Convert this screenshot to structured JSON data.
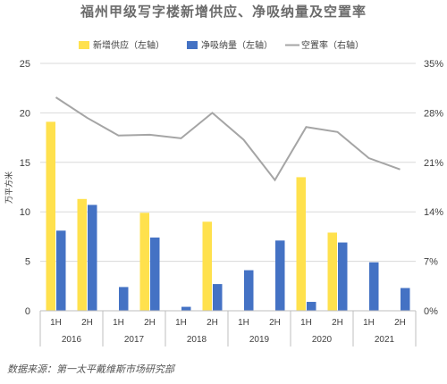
{
  "title": "福州甲级写字楼新增供应、净吸纳量及空置率",
  "source": "数据来源：第一太平戴维斯市场研究部",
  "colors": {
    "supply": "#ffe14d",
    "absorption": "#4472c4",
    "vacancy": "#a5a5a5",
    "grid": "#d9d9d9",
    "text": "#404040"
  },
  "chart_data": {
    "type": "bar",
    "categories": [
      "1H",
      "2H",
      "1H",
      "2H",
      "1H",
      "2H",
      "1H",
      "2H",
      "1H",
      "2H",
      "1H",
      "2H"
    ],
    "years": [
      "2016",
      "2017",
      "2018",
      "2019",
      "2020",
      "2021"
    ],
    "series": [
      {
        "name": "新增供应（左轴）",
        "type": "bar",
        "axis": "left",
        "values": [
          19.1,
          11.3,
          0,
          9.9,
          0,
          9.0,
          0,
          0,
          13.5,
          7.9,
          0,
          0
        ]
      },
      {
        "name": "净吸纳量（左轴）",
        "type": "bar",
        "axis": "left",
        "values": [
          8.1,
          10.7,
          2.4,
          7.4,
          0.4,
          2.7,
          4.1,
          7.1,
          0.9,
          6.9,
          4.9,
          2.3
        ]
      },
      {
        "name": "空置率（右轴）",
        "type": "line",
        "axis": "right",
        "values": [
          30.2,
          27.3,
          24.8,
          24.9,
          24.4,
          28.0,
          24.2,
          18.5,
          26.0,
          25.3,
          21.6,
          20.0
        ]
      }
    ],
    "ylabel": "万平方米",
    "ylim_left": [
      0,
      25
    ],
    "yticks_left": [
      "0",
      "5",
      "10",
      "15",
      "20",
      "25"
    ],
    "ylim_right": [
      0,
      35
    ],
    "yticks_right": [
      "0%",
      "7%",
      "14%",
      "21%",
      "28%",
      "35%"
    ],
    "grid": true,
    "legend_position": "top"
  }
}
